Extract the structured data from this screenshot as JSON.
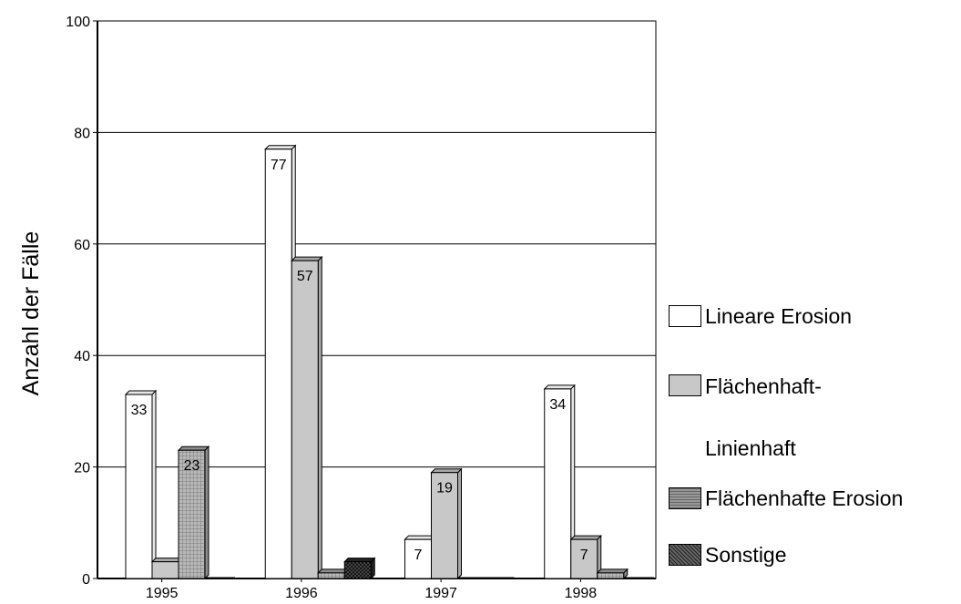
{
  "chart_data": {
    "type": "bar",
    "categories": [
      "1995",
      "1996",
      "1997",
      "1998"
    ],
    "series": [
      {
        "name": "Lineare Erosion",
        "values": [
          33,
          77,
          7,
          34
        ],
        "color": "#ffffff",
        "pattern": "none"
      },
      {
        "name": "Flächenhaft-Linienhaft",
        "values": [
          3,
          57,
          19,
          7
        ],
        "color": "#c8c8c8",
        "pattern": "none"
      },
      {
        "name": "Flächenhafte Erosion",
        "values": [
          23,
          1,
          0,
          1
        ],
        "color": "#a8a8a8",
        "pattern": "grid"
      },
      {
        "name": "Sonstige",
        "values": [
          0,
          3,
          0,
          0
        ],
        "color": "#3c3c3c",
        "pattern": "crosshatch"
      }
    ],
    "data_labels": [
      {
        "series": 0,
        "category": 0,
        "text": "33"
      },
      {
        "series": 2,
        "category": 0,
        "text": "23"
      },
      {
        "series": 0,
        "category": 1,
        "text": "77"
      },
      {
        "series": 1,
        "category": 1,
        "text": "57"
      },
      {
        "series": 0,
        "category": 2,
        "text": "7"
      },
      {
        "series": 1,
        "category": 2,
        "text": "19"
      },
      {
        "series": 0,
        "category": 3,
        "text": "34"
      },
      {
        "series": 1,
        "category": 3,
        "text": "7"
      }
    ],
    "title": "",
    "xlabel": "",
    "ylabel": "Anzahl der Fälle",
    "ylim": [
      0,
      100
    ],
    "yticks": [
      "0",
      "20",
      "40",
      "60",
      "80",
      "100"
    ],
    "grid": true,
    "legend_position": "right",
    "legend": [
      "Lineare Erosion",
      "Flächenhaft-Linienhaft",
      "Flächenhafte Erosion",
      "Sonstige"
    ]
  }
}
